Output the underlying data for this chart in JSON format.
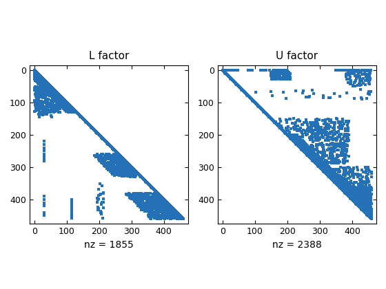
{
  "title_L": "L factor",
  "title_U": "U factor",
  "xlabel_L": "nz = 1855",
  "xlabel_U": "nz = 2388",
  "n": 460,
  "marker_color": "#2471b8",
  "marker_size": 3.0,
  "xlim": [
    -15,
    475
  ],
  "ylim": [
    475,
    -15
  ],
  "xticks": [
    0,
    100,
    200,
    300,
    400
  ],
  "yticks": [
    0,
    100,
    200,
    300,
    400
  ],
  "figsize": [
    5.6,
    4.2
  ],
  "dpi": 100
}
